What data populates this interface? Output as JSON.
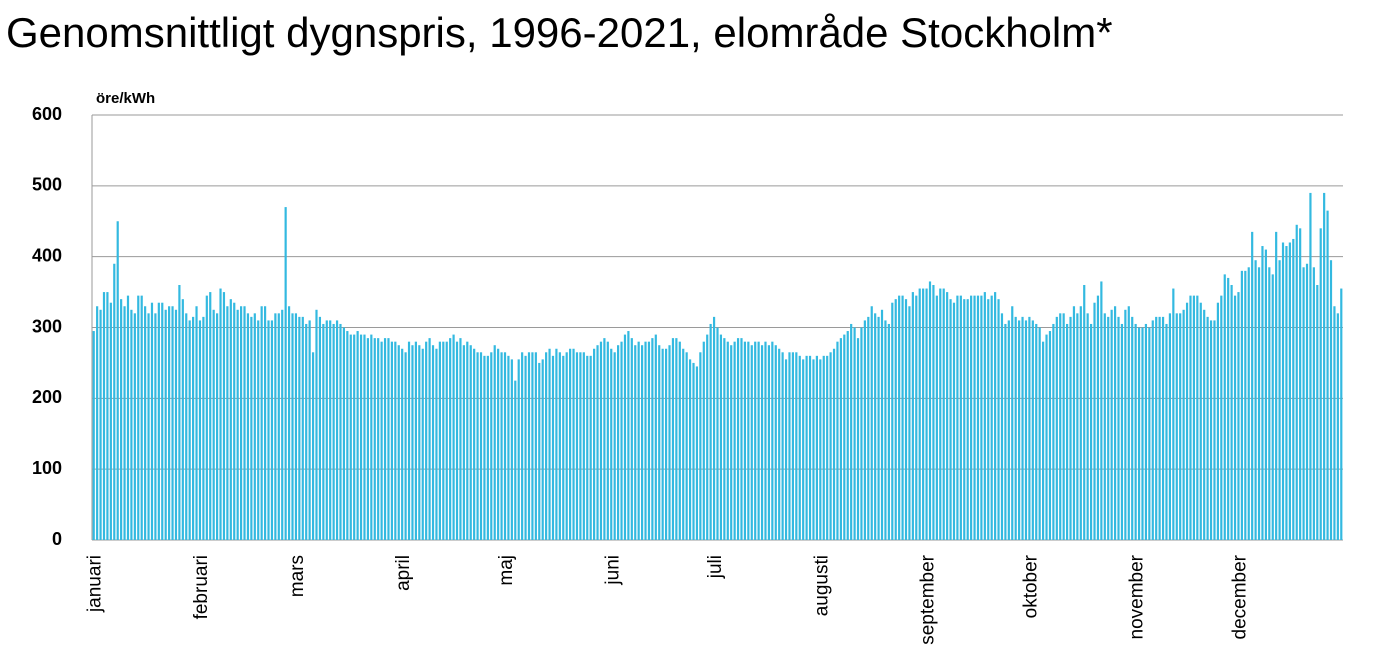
{
  "chart_data": {
    "type": "bar",
    "title": "Genomsnittligt dygnspris, 1996-2021, elområde Stockholm*",
    "y_label": "öre/kWh",
    "color": "#33b9e0",
    "ylim": [
      0,
      600
    ],
    "yticks": [
      0,
      100,
      200,
      300,
      400,
      500,
      600
    ],
    "grid": true,
    "categories": [
      "januari",
      null,
      null,
      null,
      null,
      null,
      null,
      null,
      null,
      null,
      null,
      null,
      null,
      null,
      null,
      null,
      null,
      null,
      null,
      null,
      null,
      null,
      null,
      null,
      null,
      null,
      null,
      null,
      null,
      null,
      null,
      "februari",
      null,
      null,
      null,
      null,
      null,
      null,
      null,
      null,
      null,
      null,
      null,
      null,
      null,
      null,
      null,
      null,
      null,
      null,
      null,
      null,
      null,
      null,
      null,
      null,
      null,
      null,
      null,
      "mars",
      null,
      null,
      null,
      null,
      null,
      null,
      null,
      null,
      null,
      null,
      null,
      null,
      null,
      null,
      null,
      null,
      null,
      null,
      null,
      null,
      null,
      null,
      null,
      null,
      null,
      null,
      null,
      null,
      null,
      null,
      "april",
      null,
      null,
      null,
      null,
      null,
      null,
      null,
      null,
      null,
      null,
      null,
      null,
      null,
      null,
      null,
      null,
      null,
      null,
      null,
      null,
      null,
      null,
      null,
      null,
      null,
      null,
      null,
      null,
      null,
      "maj",
      null,
      null,
      null,
      null,
      null,
      null,
      null,
      null,
      null,
      null,
      null,
      null,
      null,
      null,
      null,
      null,
      null,
      null,
      null,
      null,
      null,
      null,
      null,
      null,
      null,
      null,
      null,
      null,
      null,
      null,
      "juni",
      null,
      null,
      null,
      null,
      null,
      null,
      null,
      null,
      null,
      null,
      null,
      null,
      null,
      null,
      null,
      null,
      null,
      null,
      null,
      null,
      null,
      null,
      null,
      null,
      null,
      null,
      null,
      null,
      null,
      "juli",
      null,
      null,
      null,
      null,
      null,
      null,
      null,
      null,
      null,
      null,
      null,
      null,
      null,
      null,
      null,
      null,
      null,
      null,
      null,
      null,
      null,
      null,
      null,
      null,
      null,
      null,
      null,
      null,
      null,
      null,
      "augusti",
      null,
      null,
      null,
      null,
      null,
      null,
      null,
      null,
      null,
      null,
      null,
      null,
      null,
      null,
      null,
      null,
      null,
      null,
      null,
      null,
      null,
      null,
      null,
      null,
      null,
      null,
      null,
      null,
      null,
      null,
      "september",
      null,
      null,
      null,
      null,
      null,
      null,
      null,
      null,
      null,
      null,
      null,
      null,
      null,
      null,
      null,
      null,
      null,
      null,
      null,
      null,
      null,
      null,
      null,
      null,
      null,
      null,
      null,
      null,
      null,
      "oktober",
      null,
      null,
      null,
      null,
      null,
      null,
      null,
      null,
      null,
      null,
      null,
      null,
      null,
      null,
      null,
      null,
      null,
      null,
      null,
      null,
      null,
      null,
      null,
      null,
      null,
      null,
      null,
      null,
      null,
      null,
      "november",
      null,
      null,
      null,
      null,
      null,
      null,
      null,
      null,
      null,
      null,
      null,
      null,
      null,
      null,
      null,
      null,
      null,
      null,
      null,
      null,
      null,
      null,
      null,
      null,
      null,
      null,
      null,
      null,
      null,
      "december",
      null,
      null,
      null,
      null,
      null,
      null,
      null,
      null,
      null,
      null,
      null,
      null,
      null,
      null,
      null,
      null,
      null,
      null,
      null,
      null,
      null,
      null,
      null,
      null,
      null,
      null,
      null,
      null,
      null,
      null
    ],
    "values": [
      295,
      330,
      325,
      350,
      350,
      335,
      390,
      450,
      340,
      330,
      345,
      325,
      320,
      345,
      345,
      330,
      320,
      335,
      320,
      335,
      335,
      325,
      330,
      330,
      325,
      360,
      340,
      320,
      310,
      315,
      330,
      310,
      315,
      345,
      350,
      325,
      320,
      355,
      350,
      330,
      340,
      335,
      325,
      330,
      330,
      320,
      315,
      320,
      310,
      330,
      330,
      310,
      310,
      320,
      320,
      325,
      470,
      330,
      320,
      320,
      315,
      315,
      305,
      310,
      265,
      325,
      315,
      305,
      310,
      310,
      305,
      310,
      305,
      300,
      295,
      290,
      290,
      295,
      290,
      290,
      285,
      290,
      285,
      285,
      280,
      285,
      285,
      280,
      280,
      275,
      270,
      265,
      280,
      275,
      280,
      275,
      270,
      280,
      285,
      275,
      270,
      280,
      280,
      280,
      285,
      290,
      280,
      285,
      275,
      280,
      275,
      270,
      265,
      265,
      260,
      260,
      265,
      275,
      270,
      265,
      265,
      260,
      255,
      225,
      255,
      265,
      260,
      265,
      265,
      265,
      250,
      255,
      265,
      270,
      260,
      270,
      265,
      260,
      265,
      270,
      270,
      265,
      265,
      265,
      260,
      260,
      270,
      275,
      280,
      285,
      280,
      270,
      265,
      275,
      280,
      290,
      295,
      285,
      275,
      280,
      275,
      280,
      280,
      285,
      290,
      275,
      270,
      270,
      275,
      285,
      285,
      280,
      270,
      265,
      255,
      250,
      245,
      265,
      280,
      290,
      305,
      315,
      300,
      290,
      285,
      280,
      275,
      280,
      285,
      285,
      280,
      280,
      275,
      280,
      280,
      275,
      280,
      275,
      280,
      275,
      270,
      265,
      255,
      265,
      265,
      265,
      260,
      255,
      260,
      260,
      255,
      260,
      255,
      260,
      260,
      265,
      270,
      280,
      285,
      290,
      295,
      305,
      300,
      285,
      300,
      310,
      315,
      330,
      320,
      315,
      325,
      310,
      305,
      335,
      340,
      345,
      345,
      340,
      330,
      350,
      345,
      355,
      355,
      355,
      365,
      360,
      345,
      355,
      355,
      350,
      340,
      335,
      345,
      345,
      340,
      340,
      345,
      345,
      345,
      345,
      350,
      340,
      345,
      350,
      340,
      320,
      305,
      310,
      330,
      315,
      310,
      315,
      310,
      315,
      310,
      305,
      300,
      280,
      290,
      295,
      305,
      315,
      320,
      320,
      305,
      315,
      330,
      320,
      330,
      360,
      320,
      305,
      335,
      345,
      365,
      320,
      315,
      325,
      330,
      315,
      305,
      325,
      330,
      315,
      305,
      300,
      300,
      305,
      300,
      310,
      315,
      315,
      315,
      305,
      320,
      355,
      320,
      320,
      325,
      335,
      345,
      345,
      345,
      335,
      325,
      315,
      310,
      310,
      335,
      345,
      375,
      370,
      360,
      345,
      350,
      380,
      380,
      385,
      435,
      395,
      385,
      415,
      410,
      385,
      375,
      435,
      395,
      420,
      415,
      420,
      425,
      445,
      440,
      385,
      390,
      490,
      385,
      360,
      440,
      490,
      465,
      395,
      330,
      320,
      355
    ]
  }
}
